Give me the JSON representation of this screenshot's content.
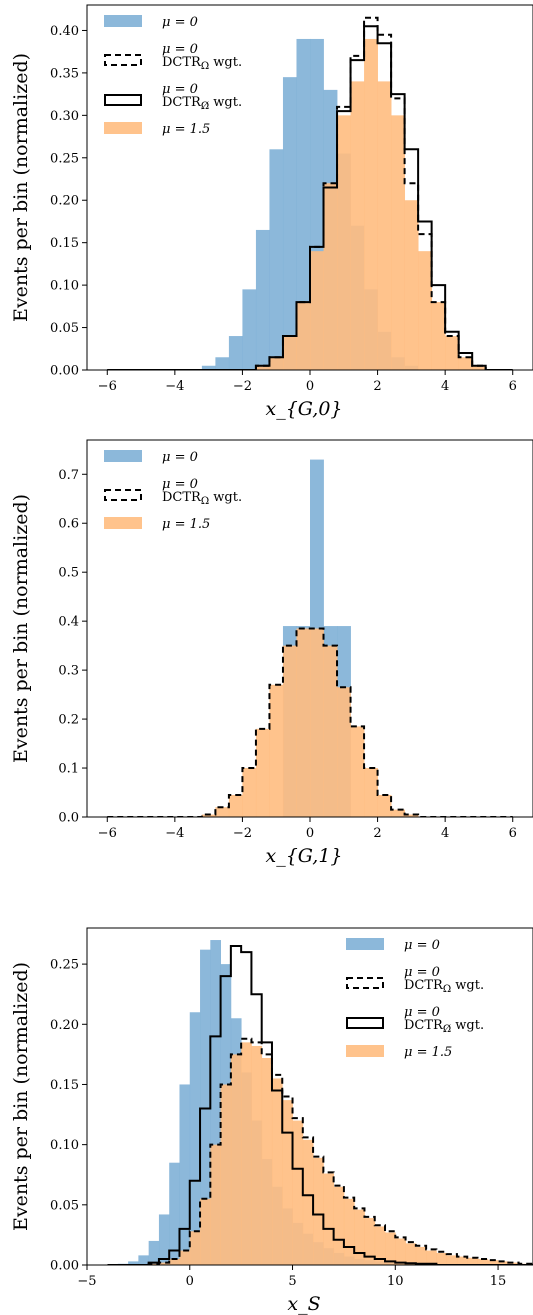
{
  "chart_data": [
    {
      "type": "bar",
      "xlabel": "x_{G,0}",
      "ylabel": "Events per bin (normalized)",
      "xlim": [
        -6.6,
        6.6
      ],
      "ylim": [
        0,
        0.43
      ],
      "xticks": [
        "−6",
        "−4",
        "−2",
        "0",
        "2",
        "4",
        "6"
      ],
      "yticks": [
        "0.00",
        "0.05",
        "0.10",
        "0.15",
        "0.20",
        "0.25",
        "0.30",
        "0.35",
        "0.40"
      ],
      "legend_position": "upper-left",
      "bin_edges": [
        -6,
        -5.6,
        -5.2,
        -4.8,
        -4.4,
        -4,
        -3.6,
        -3.2,
        -2.8,
        -2.4,
        -2,
        -1.6,
        -1.2,
        -0.8,
        -0.4,
        0,
        0.4,
        0.8,
        1.2,
        1.6,
        2,
        2.4,
        2.8,
        3.2,
        3.6,
        4,
        4.4,
        4.8,
        5.2,
        5.6,
        6
      ],
      "series": [
        {
          "name": "μ = 0",
          "style": "filled",
          "color": "#7fb0d6",
          "values": [
            0,
            0,
            0,
            0,
            0,
            0,
            0,
            0.005,
            0.015,
            0.04,
            0.095,
            0.165,
            0.26,
            0.345,
            0.39,
            0.39,
            0.33,
            0.255,
            0.17,
            0.095,
            0.045,
            0.015,
            0.005,
            0,
            0,
            0,
            0,
            0,
            0,
            0
          ]
        },
        {
          "name": "μ = 0",
          "label2": "DCTR",
          "sub": "Ω",
          "label3": " wgt.",
          "style": "dashed",
          "color": "#000000",
          "values": [
            0,
            0,
            0,
            0,
            0,
            0,
            0,
            0,
            0,
            0,
            0,
            0.005,
            0.015,
            0.04,
            0.08,
            0.145,
            0.22,
            0.31,
            0.37,
            0.415,
            0.395,
            0.32,
            0.22,
            0.16,
            0.08,
            0.04,
            0.015,
            0.005,
            0,
            0
          ]
        },
        {
          "name": "μ = 0",
          "label2": "DCTR",
          "sub": "Ω̸",
          "label3": " wgt.",
          "style": "solid",
          "color": "#000000",
          "values": [
            0,
            0,
            0,
            0,
            0,
            0,
            0,
            0,
            0,
            0,
            0,
            0.005,
            0.015,
            0.04,
            0.08,
            0.145,
            0.215,
            0.305,
            0.365,
            0.405,
            0.385,
            0.325,
            0.26,
            0.175,
            0.1,
            0.045,
            0.02,
            0.005,
            0,
            0
          ]
        },
        {
          "name": "μ = 1.5",
          "style": "filled",
          "color": "#ffbc80",
          "values": [
            0,
            0,
            0,
            0,
            0,
            0,
            0,
            0,
            0,
            0,
            0,
            0.005,
            0.015,
            0.04,
            0.08,
            0.14,
            0.22,
            0.3,
            0.34,
            0.39,
            0.34,
            0.3,
            0.2,
            0.14,
            0.08,
            0.04,
            0.015,
            0.005,
            0,
            0
          ]
        }
      ]
    },
    {
      "type": "bar",
      "xlabel": "x_{G,1}",
      "ylabel": "Events per bin (normalized)",
      "xlim": [
        -6.6,
        6.6
      ],
      "ylim": [
        0,
        0.77
      ],
      "xticks": [
        "−6",
        "−4",
        "−2",
        "0",
        "2",
        "4",
        "6"
      ],
      "yticks": [
        "0.0",
        "0.1",
        "0.2",
        "0.3",
        "0.4",
        "0.5",
        "0.6",
        "0.7"
      ],
      "legend_position": "upper-left",
      "bin_edges": [
        -6,
        -5.6,
        -5.2,
        -4.8,
        -4.4,
        -4,
        -3.6,
        -3.2,
        -2.8,
        -2.4,
        -2,
        -1.6,
        -1.2,
        -0.8,
        -0.4,
        0,
        0.4,
        0.8,
        1.2,
        1.6,
        2,
        2.4,
        2.8,
        3.2,
        3.6,
        4,
        4.4,
        4.8,
        5.2,
        5.6,
        6
      ],
      "series": [
        {
          "name": "μ = 0",
          "style": "filled",
          "color": "#7fb0d6",
          "values": [
            0,
            0,
            0,
            0,
            0,
            0,
            0,
            0,
            0,
            0,
            0,
            0,
            0,
            0.39,
            0.39,
            0.73,
            0.39,
            0.39,
            0,
            0,
            0,
            0,
            0,
            0,
            0,
            0,
            0,
            0,
            0,
            0
          ]
        },
        {
          "name": "μ = 0",
          "label2": "DCTR",
          "sub": "Ω",
          "label3": " wgt.",
          "style": "dashed",
          "color": "#000000",
          "values": [
            0,
            0,
            0,
            0,
            0,
            0,
            0,
            0.005,
            0.02,
            0.045,
            0.1,
            0.18,
            0.27,
            0.35,
            0.385,
            0.385,
            0.35,
            0.265,
            0.185,
            0.1,
            0.045,
            0.015,
            0.005,
            0,
            0,
            0,
            0,
            0,
            0,
            0
          ]
        },
        {
          "name": "μ = 1.5",
          "style": "filled",
          "color": "#ffbc80",
          "values": [
            0,
            0,
            0,
            0,
            0,
            0,
            0,
            0.005,
            0.02,
            0.045,
            0.1,
            0.18,
            0.27,
            0.35,
            0.385,
            0.385,
            0.35,
            0.265,
            0.185,
            0.1,
            0.045,
            0.015,
            0.005,
            0,
            0,
            0,
            0,
            0,
            0,
            0
          ]
        }
      ]
    },
    {
      "type": "bar",
      "xlabel": "x_S",
      "ylabel": "Events per bin (normalized)",
      "xlim": [
        -5,
        16.7
      ],
      "ylim": [
        0,
        0.28
      ],
      "xticks": [
        "−5",
        "0",
        "5",
        "10",
        "15"
      ],
      "xtick_values": [
        -5,
        0,
        5,
        10,
        15
      ],
      "yticks": [
        "0.00",
        "0.05",
        "0.10",
        "0.15",
        "0.20",
        "0.25"
      ],
      "legend_position": "upper-right",
      "bin_start": -4,
      "bin_width": 0.5,
      "series": [
        {
          "name": "μ = 0",
          "style": "filled",
          "color": "#7fb0d6",
          "values": [
            0,
            0.001,
            0.003,
            0.008,
            0.02,
            0.042,
            0.085,
            0.15,
            0.21,
            0.262,
            0.27,
            0.25,
            0.205,
            0.16,
            0.12,
            0.088,
            0.065,
            0.047,
            0.035,
            0.026,
            0.019,
            0.014,
            0.01,
            0.007,
            0.005,
            0.004,
            0.003,
            0.002,
            0.001,
            0.001,
            0.001,
            0.0005,
            0.0005,
            0,
            0,
            0,
            0,
            0,
            0,
            0,
            0,
            0
          ]
        },
        {
          "name": "μ = 0",
          "label2": "DCTR",
          "sub": "Ω",
          "label3": " wgt.",
          "style": "dashed",
          "color": "#000000",
          "values": [
            0,
            0,
            0,
            0,
            0.001,
            0.002,
            0.005,
            0.012,
            0.028,
            0.055,
            0.1,
            0.15,
            0.175,
            0.188,
            0.185,
            0.175,
            0.158,
            0.14,
            0.122,
            0.106,
            0.09,
            0.077,
            0.066,
            0.056,
            0.047,
            0.04,
            0.033,
            0.028,
            0.023,
            0.019,
            0.016,
            0.013,
            0.011,
            0.009,
            0.007,
            0.006,
            0.005,
            0.004,
            0.003,
            0.002,
            0.001,
            0.001
          ]
        },
        {
          "name": "μ = 0",
          "label2": "DCTR",
          "sub": "Ω̸",
          "label3": " wgt.",
          "style": "solid",
          "color": "#000000",
          "values": [
            0,
            0,
            0,
            0,
            0.002,
            0.005,
            0.012,
            0.03,
            0.07,
            0.13,
            0.19,
            0.24,
            0.265,
            0.26,
            0.225,
            0.185,
            0.145,
            0.11,
            0.08,
            0.058,
            0.042,
            0.03,
            0.021,
            0.015,
            0.01,
            0.007,
            0.005,
            0.003,
            0.002,
            0.0015,
            0.001,
            0.001,
            0,
            0,
            0,
            0,
            0,
            0,
            0,
            0,
            0,
            0
          ]
        },
        {
          "name": "μ = 1.5",
          "style": "filled",
          "color": "#ffbc80",
          "values": [
            0,
            0,
            0,
            0,
            0.001,
            0.002,
            0.005,
            0.012,
            0.028,
            0.055,
            0.1,
            0.15,
            0.175,
            0.185,
            0.182,
            0.172,
            0.155,
            0.137,
            0.12,
            0.104,
            0.089,
            0.076,
            0.065,
            0.055,
            0.046,
            0.039,
            0.032,
            0.027,
            0.022,
            0.018,
            0.015,
            0.012,
            0.01,
            0.008,
            0.007,
            0.006,
            0.005,
            0.004,
            0.003,
            0.002,
            0.001,
            0.001
          ]
        }
      ]
    }
  ]
}
